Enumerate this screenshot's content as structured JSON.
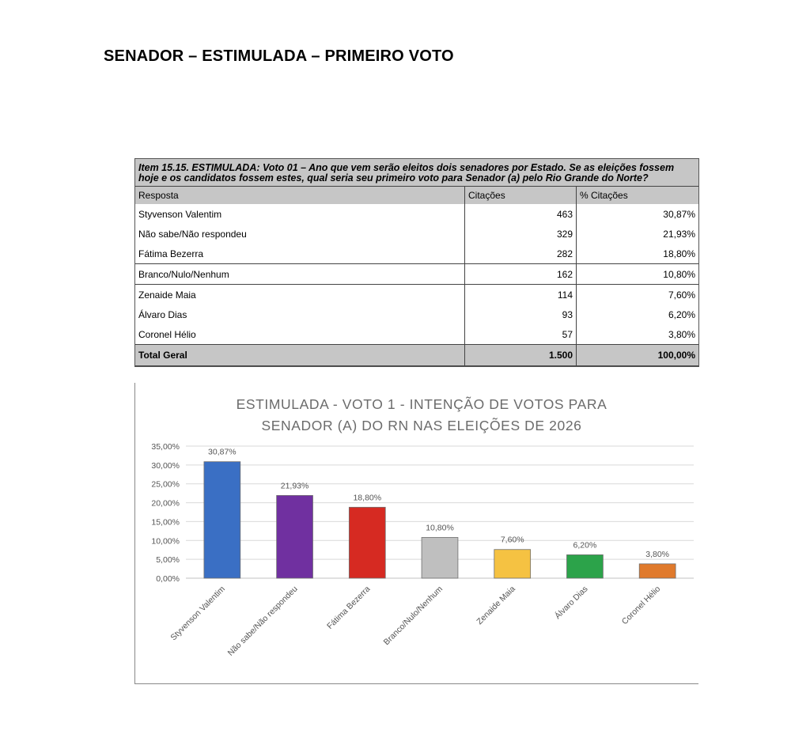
{
  "page": {
    "title": "SENADOR – ESTIMULADA – PRIMEIRO VOTO"
  },
  "table": {
    "question": "Item 15.15. ESTIMULADA: Voto 01 – Ano que vem serão eleitos dois senadores por Estado. Se as eleições fossem hoje e os candidatos fossem estes, qual seria seu primeiro voto para Senador (a) pelo Rio Grande do Norte?",
    "headers": [
      "Resposta",
      "Citações",
      "% Citações"
    ],
    "rows": [
      [
        "Styvenson Valentim",
        "463",
        "30,87%"
      ],
      [
        "Não sabe/Não respondeu",
        "329",
        "21,93%"
      ],
      [
        "Fátima Bezerra",
        "282",
        "18,80%"
      ],
      [
        "Branco/Nulo/Nenhum",
        "162",
        "10,80%"
      ],
      [
        "Zenaide Maia",
        "114",
        "7,60%"
      ],
      [
        "Álvaro Dias",
        "93",
        "6,20%"
      ],
      [
        "Coronel Hélio",
        "57",
        "3,80%"
      ]
    ],
    "total": [
      "Total Geral",
      "1.500",
      "100,00%"
    ]
  },
  "chart_data": {
    "type": "bar",
    "title_lines": [
      "ESTIMULADA - VOTO 1 - INTENÇÃO DE VOTOS PARA",
      "SENADOR (A) DO RN NAS ELEIÇÕES DE 2026"
    ],
    "categories": [
      "Styvenson Valentim",
      "Não sabe/Não respondeu",
      "Fátima Bezerra",
      "Branco/Nulo/Nenhum",
      "Zenaide Maia",
      "Álvaro Dias",
      "Coronel Hélio"
    ],
    "values": [
      30.87,
      21.93,
      18.8,
      10.8,
      7.6,
      6.2,
      3.8
    ],
    "data_labels": [
      "30,87%",
      "21,93%",
      "18,80%",
      "10,80%",
      "7,60%",
      "6,20%",
      "3,80%"
    ],
    "colors": [
      "#3a6fc4",
      "#7030a0",
      "#d62a22",
      "#bfbfbf",
      "#f5c242",
      "#2ca34a",
      "#e07a2c"
    ],
    "ylim": [
      0,
      35
    ],
    "yticks": [
      0,
      5,
      10,
      15,
      20,
      25,
      30,
      35
    ],
    "ytick_labels": [
      "0,00%",
      "5,00%",
      "10,00%",
      "15,00%",
      "20,00%",
      "25,00%",
      "30,00%",
      "35,00%"
    ],
    "grid": true,
    "legend": "none"
  }
}
